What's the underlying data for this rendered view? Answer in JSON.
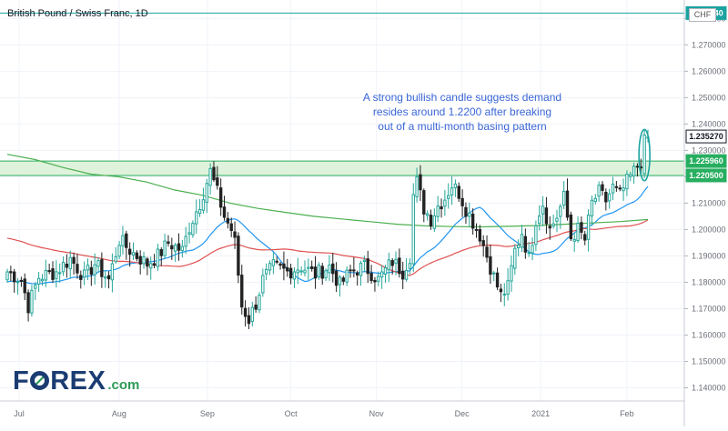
{
  "header": {
    "title": "British Pound / Swiss Franc, 1D",
    "currency": "CHF"
  },
  "annotation": {
    "lines": [
      "A strong bullish candle suggests demand",
      "resides around 1.2200 after breaking",
      "out of a multi-month basing pattern"
    ]
  },
  "logo": {
    "text_before": "F",
    "text_after": "REX",
    "suffix": ".com"
  },
  "colors": {
    "up": "#26a69a",
    "down": "#222222",
    "zone_fill": "#dff3dc",
    "zone_line": "#27ae60",
    "ma_fast": "#2196f3",
    "ma_mid": "#e05050",
    "ma_slow": "#4caf50",
    "marker": "#1aa3a0",
    "level_line": "#1aa3a0",
    "annotation": "#3a66d6",
    "logo_blue": "#1a3c72",
    "logo_green": "#2e9b57"
  },
  "chart_data": {
    "type": "candlestick",
    "title": "British Pound / Swiss Franc, 1D",
    "ylim": [
      1.135,
      1.287
    ],
    "yticks": [
      "1.280000",
      "1.270000",
      "1.260000",
      "1.250000",
      "1.240000",
      "1.230000",
      "1.220000",
      "1.210000",
      "1.200000",
      "1.190000",
      "1.180000",
      "1.170000",
      "1.160000",
      "1.150000",
      "1.140000"
    ],
    "x_labels": [
      "Jul",
      "Aug",
      "Sep",
      "Oct",
      "Nov",
      "Dec",
      "2021",
      "Feb"
    ],
    "price_labels": [
      {
        "text": "1.282040",
        "value": 1.28204,
        "style": "teal"
      },
      {
        "text": "1.235270",
        "value": 1.23527,
        "style": "outline"
      },
      {
        "text": "1.225960",
        "value": 1.22596,
        "style": "green"
      },
      {
        "text": "1.220500",
        "value": 1.2205,
        "style": "green"
      }
    ],
    "resistance_line": 1.28204,
    "demand_zone": [
      1.2205,
      1.22596
    ],
    "last_close": 1.23527,
    "waypoints": [
      [
        0,
        1.184
      ],
      [
        4,
        1.181
      ],
      [
        6,
        1.171
      ],
      [
        9,
        1.182
      ],
      [
        14,
        1.184
      ],
      [
        18,
        1.189
      ],
      [
        22,
        1.182
      ],
      [
        25,
        1.187
      ],
      [
        29,
        1.181
      ],
      [
        32,
        1.196
      ],
      [
        36,
        1.191
      ],
      [
        40,
        1.187
      ],
      [
        43,
        1.19
      ],
      [
        46,
        1.195
      ],
      [
        50,
        1.192
      ],
      [
        52,
        1.201
      ],
      [
        55,
        1.21
      ],
      [
        58,
        1.222
      ],
      [
        60,
        1.214
      ],
      [
        62,
        1.205
      ],
      [
        64,
        1.2
      ],
      [
        65,
        1.195
      ],
      [
        67,
        1.171
      ],
      [
        69,
        1.166
      ],
      [
        71,
        1.172
      ],
      [
        73,
        1.181
      ],
      [
        76,
        1.186
      ],
      [
        80,
        1.184
      ],
      [
        84,
        1.186
      ],
      [
        88,
        1.183
      ],
      [
        92,
        1.186
      ],
      [
        95,
        1.179
      ],
      [
        98,
        1.184
      ],
      [
        102,
        1.186
      ],
      [
        106,
        1.181
      ],
      [
        110,
        1.188
      ],
      [
        113,
        1.184
      ],
      [
        115,
        1.19
      ],
      [
        116,
        1.213
      ],
      [
        117,
        1.218
      ],
      [
        119,
        1.208
      ],
      [
        121,
        1.204
      ],
      [
        123,
        1.209
      ],
      [
        125,
        1.212
      ],
      [
        127,
        1.217
      ],
      [
        129,
        1.214
      ],
      [
        131,
        1.208
      ],
      [
        133,
        1.203
      ],
      [
        135,
        1.198
      ],
      [
        137,
        1.19
      ],
      [
        139,
        1.182
      ],
      [
        141,
        1.175
      ],
      [
        143,
        1.178
      ],
      [
        145,
        1.192
      ],
      [
        147,
        1.199
      ],
      [
        149,
        1.189
      ],
      [
        151,
        1.204
      ],
      [
        153,
        1.21
      ],
      [
        155,
        1.2
      ],
      [
        157,
        1.205
      ],
      [
        159,
        1.212
      ],
      [
        161,
        1.197
      ],
      [
        163,
        1.2
      ],
      [
        165,
        1.196
      ],
      [
        167,
        1.21
      ],
      [
        169,
        1.214
      ],
      [
        171,
        1.211
      ],
      [
        173,
        1.216
      ],
      [
        175,
        1.213
      ],
      [
        177,
        1.218
      ],
      [
        179,
        1.222
      ],
      [
        181,
        1.226
      ],
      [
        182,
        1.233
      ],
      [
        183,
        1.235
      ]
    ],
    "x_label_positions": [
      0.028,
      0.174,
      0.303,
      0.425,
      0.55,
      0.675,
      0.79,
      0.916
    ],
    "moving_averages": [
      {
        "name": "ma_fast",
        "period": 20,
        "color": "#2196f3"
      },
      {
        "name": "ma_mid",
        "period": 50,
        "color": "#e05050"
      },
      {
        "name": "ma_slow",
        "period": 200,
        "color": "#4caf50",
        "values": [
          1.2285,
          1.2265,
          1.2235,
          1.221,
          1.22,
          1.218,
          1.215,
          1.213,
          1.21,
          1.208,
          1.2065,
          1.205,
          1.204,
          1.203,
          1.202,
          1.2014,
          1.2011,
          1.201,
          1.2012,
          1.2015,
          1.202,
          1.2025,
          1.203,
          1.2038
        ]
      }
    ]
  }
}
